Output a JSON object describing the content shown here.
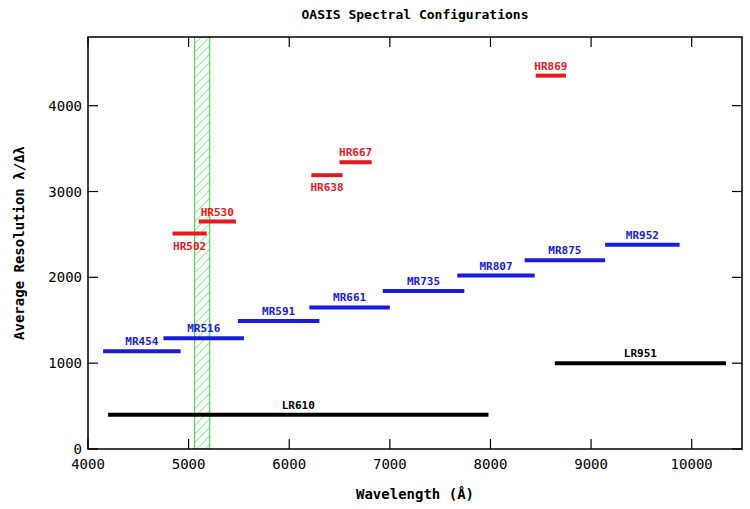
{
  "chart_data": {
    "type": "line",
    "title": "OASIS Spectral Configurations",
    "x_label": "Wavelength (Å)",
    "y_label": "Average Resolution λ/Δλ",
    "xlim": [
      4000,
      10500
    ],
    "ylim": [
      0,
      4800
    ],
    "xticks": [
      4000,
      5000,
      6000,
      7000,
      8000,
      9000,
      10000
    ],
    "yticks": [
      0,
      1000,
      2000,
      3000,
      4000
    ],
    "grid": false,
    "highlight": {
      "x": [
        5060,
        5210
      ],
      "color": "#33cc33"
    },
    "series": [
      {
        "name": "HR869",
        "color": "#e8191c",
        "x": [
          8450,
          8750
        ],
        "values": [
          4350,
          4350
        ]
      },
      {
        "name": "HR667",
        "color": "#e8191c",
        "x": [
          6500,
          6820
        ],
        "values": [
          3340,
          3340
        ]
      },
      {
        "name": "HR638",
        "color": "#e8191c",
        "x": [
          6220,
          6530
        ],
        "values": [
          3190,
          3190
        ]
      },
      {
        "name": "HR530",
        "color": "#e8191c",
        "x": [
          5100,
          5470
        ],
        "values": [
          2650,
          2650
        ]
      },
      {
        "name": "HR502",
        "color": "#e8191c",
        "x": [
          4840,
          5180
        ],
        "values": [
          2510,
          2510
        ]
      },
      {
        "name": "MR454",
        "color": "#1a1ae0",
        "x": [
          4150,
          4920
        ],
        "values": [
          1140,
          1140
        ]
      },
      {
        "name": "MR516",
        "color": "#1a1ae0",
        "x": [
          4750,
          5550
        ],
        "values": [
          1290,
          1290
        ]
      },
      {
        "name": "MR591",
        "color": "#1a1ae0",
        "x": [
          5490,
          6300
        ],
        "values": [
          1490,
          1490
        ]
      },
      {
        "name": "MR661",
        "color": "#1a1ae0",
        "x": [
          6200,
          7000
        ],
        "values": [
          1650,
          1650
        ]
      },
      {
        "name": "MR735",
        "color": "#1a1ae0",
        "x": [
          6930,
          7740
        ],
        "values": [
          1840,
          1840
        ]
      },
      {
        "name": "MR807",
        "color": "#1a1ae0",
        "x": [
          7670,
          8440
        ],
        "values": [
          2020,
          2020
        ]
      },
      {
        "name": "MR875",
        "color": "#1a1ae0",
        "x": [
          8340,
          9140
        ],
        "values": [
          2200,
          2200
        ]
      },
      {
        "name": "MR952",
        "color": "#1a1ae0",
        "x": [
          9140,
          9880
        ],
        "values": [
          2380,
          2380
        ]
      },
      {
        "name": "LR951",
        "color": "#000000",
        "x": [
          8640,
          10340
        ],
        "values": [
          1000,
          1000
        ]
      },
      {
        "name": "LR610",
        "color": "#000000",
        "x": [
          4200,
          7980
        ],
        "values": [
          400,
          400
        ]
      }
    ]
  }
}
